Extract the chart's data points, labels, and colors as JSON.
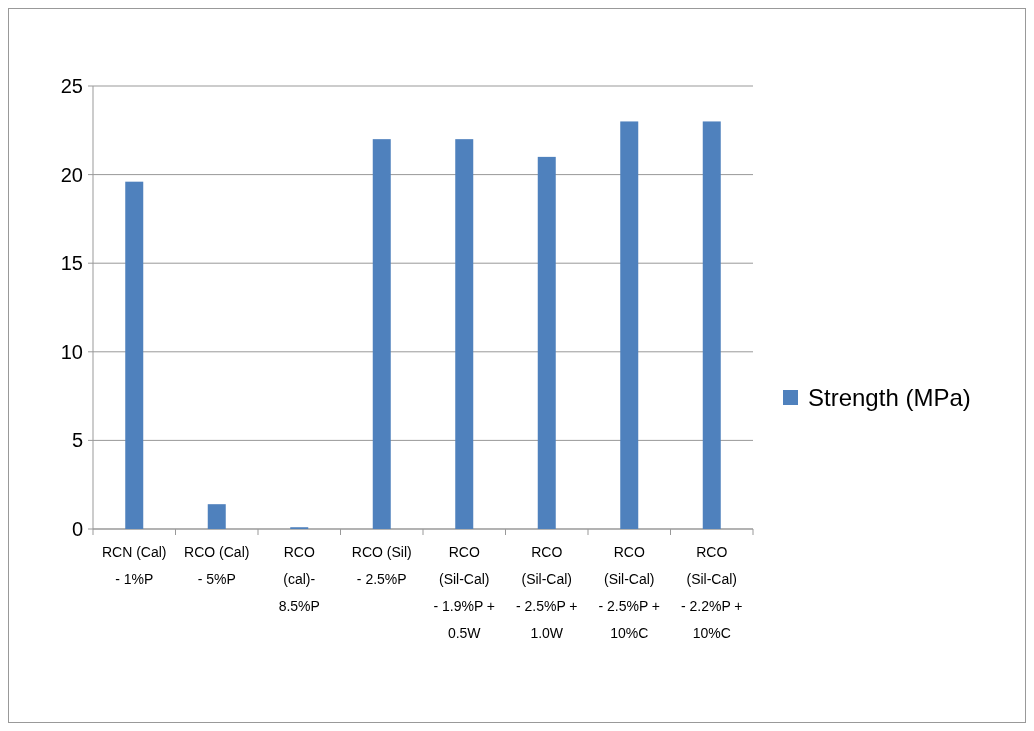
{
  "chart_data": {
    "type": "bar",
    "categories": [
      "RCN (Cal) - 1%P",
      "RCO (Cal) - 5%P",
      "RCO (cal)- 8.5%P",
      "RCO (Sil) - 2.5%P",
      "RCO (Sil-Cal) - 1.9%P + 0.5W",
      "RCO (Sil-Cal) - 2.5%P + 1.0W",
      "RCO (Sil-Cal) - 2.5%P + 10%C",
      "RCO (Sil-Cal) - 2.2%P + 10%C"
    ],
    "series": [
      {
        "name": "Strength (MPa)",
        "color": "#4f81bd",
        "values": [
          19.6,
          1.4,
          0.1,
          22,
          22,
          21,
          23,
          23
        ]
      }
    ],
    "ylim": [
      0,
      25
    ],
    "yticks": [
      0,
      5,
      10,
      15,
      20,
      25
    ],
    "grid": "y",
    "legend": "right"
  }
}
